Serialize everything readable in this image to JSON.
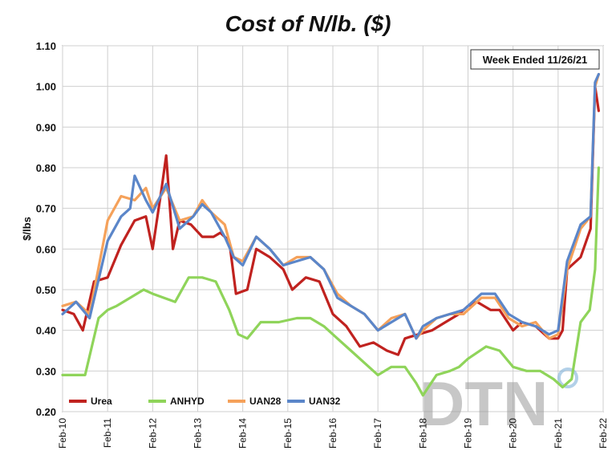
{
  "chart_data": {
    "type": "line",
    "title": "Cost of N/lb. ($)",
    "ylabel": "$/lbs",
    "xlabel": "",
    "ylim": [
      0.2,
      1.1
    ],
    "yticks": [
      "0.20",
      "0.30",
      "0.40",
      "0.50",
      "0.60",
      "0.70",
      "0.80",
      "0.90",
      "1.00",
      "1.10"
    ],
    "xticks": [
      "Feb-10",
      "Feb-11",
      "Feb-12",
      "Feb-13",
      "Feb-14",
      "Feb-15",
      "Feb-16",
      "Feb-17",
      "Feb-18",
      "Feb-19",
      "Feb-20",
      "Feb-21",
      "Feb-22"
    ],
    "xlim": [
      2010,
      2022
    ],
    "annotation": "Week Ended 11/26/21",
    "watermark": "DTN",
    "grid": true,
    "legend_position": "bottom-left",
    "series": [
      {
        "name": "Urea",
        "color": "#c0221f",
        "x": [
          2010.0,
          2010.25,
          2010.45,
          2010.7,
          2011.0,
          2011.3,
          2011.6,
          2011.85,
          2012.0,
          2012.2,
          2012.3,
          2012.45,
          2012.6,
          2012.85,
          2013.1,
          2013.35,
          2013.5,
          2013.7,
          2013.85,
          2014.1,
          2014.3,
          2014.6,
          2014.9,
          2015.1,
          2015.4,
          2015.7,
          2016.0,
          2016.3,
          2016.6,
          2016.9,
          2017.2,
          2017.45,
          2017.6,
          2017.9,
          2018.2,
          2018.5,
          2018.8,
          2019.0,
          2019.2,
          2019.5,
          2019.7,
          2020.0,
          2020.2,
          2020.5,
          2020.8,
          2021.0,
          2021.1,
          2021.2,
          2021.5,
          2021.72,
          2021.82,
          2021.9
        ],
        "y": [
          0.45,
          0.44,
          0.4,
          0.52,
          0.53,
          0.61,
          0.67,
          0.68,
          0.6,
          0.75,
          0.83,
          0.6,
          0.67,
          0.66,
          0.63,
          0.63,
          0.64,
          0.62,
          0.49,
          0.5,
          0.6,
          0.58,
          0.55,
          0.5,
          0.53,
          0.52,
          0.44,
          0.41,
          0.36,
          0.37,
          0.35,
          0.34,
          0.38,
          0.39,
          0.4,
          0.42,
          0.44,
          0.46,
          0.47,
          0.45,
          0.45,
          0.4,
          0.42,
          0.41,
          0.38,
          0.38,
          0.4,
          0.55,
          0.58,
          0.65,
          1.0,
          0.94
        ]
      },
      {
        "name": "ANHYD",
        "color": "#8fd45a",
        "x": [
          2010.0,
          2010.3,
          2010.5,
          2010.8,
          2011.0,
          2011.2,
          2011.5,
          2011.8,
          2012.0,
          2012.5,
          2012.8,
          2013.1,
          2013.4,
          2013.7,
          2013.9,
          2014.1,
          2014.4,
          2014.8,
          2015.2,
          2015.5,
          2015.8,
          2016.1,
          2016.4,
          2016.7,
          2017.0,
          2017.3,
          2017.6,
          2017.85,
          2018.0,
          2018.3,
          2018.6,
          2018.8,
          2019.0,
          2019.4,
          2019.7,
          2020.0,
          2020.3,
          2020.6,
          2020.9,
          2021.1,
          2021.3,
          2021.5,
          2021.7,
          2021.82,
          2021.9
        ],
        "y": [
          0.29,
          0.29,
          0.29,
          0.43,
          0.45,
          0.46,
          0.48,
          0.5,
          0.49,
          0.47,
          0.53,
          0.53,
          0.52,
          0.45,
          0.39,
          0.38,
          0.42,
          0.42,
          0.43,
          0.43,
          0.41,
          0.38,
          0.35,
          0.32,
          0.29,
          0.31,
          0.31,
          0.27,
          0.24,
          0.29,
          0.3,
          0.31,
          0.33,
          0.36,
          0.35,
          0.31,
          0.3,
          0.3,
          0.28,
          0.26,
          0.28,
          0.42,
          0.45,
          0.55,
          0.8
        ]
      },
      {
        "name": "UAN28",
        "color": "#f5a15a",
        "x": [
          2010.0,
          2010.3,
          2010.6,
          2011.0,
          2011.3,
          2011.6,
          2011.85,
          2012.0,
          2012.3,
          2012.6,
          2012.9,
          2013.1,
          2013.3,
          2013.6,
          2013.8,
          2014.0,
          2014.3,
          2014.6,
          2014.9,
          2015.2,
          2015.5,
          2015.8,
          2016.1,
          2016.4,
          2016.7,
          2017.0,
          2017.3,
          2017.6,
          2017.85,
          2018.0,
          2018.3,
          2018.6,
          2018.9,
          2019.0,
          2019.3,
          2019.6,
          2019.9,
          2020.2,
          2020.5,
          2020.8,
          2021.0,
          2021.2,
          2021.5,
          2021.72,
          2021.82,
          2021.9
        ],
        "y": [
          0.46,
          0.47,
          0.44,
          0.67,
          0.73,
          0.72,
          0.75,
          0.7,
          0.75,
          0.67,
          0.68,
          0.72,
          0.69,
          0.66,
          0.58,
          0.57,
          0.63,
          0.6,
          0.56,
          0.58,
          0.58,
          0.55,
          0.49,
          0.46,
          0.44,
          0.4,
          0.43,
          0.44,
          0.38,
          0.4,
          0.43,
          0.44,
          0.44,
          0.45,
          0.48,
          0.48,
          0.43,
          0.41,
          0.42,
          0.38,
          0.39,
          0.55,
          0.65,
          0.68,
          1.0,
          1.03
        ]
      },
      {
        "name": "UAN32",
        "color": "#5b86c9",
        "x": [
          2010.0,
          2010.3,
          2010.6,
          2011.0,
          2011.3,
          2011.5,
          2011.6,
          2011.85,
          2012.0,
          2012.3,
          2012.6,
          2012.9,
          2013.1,
          2013.3,
          2013.6,
          2013.8,
          2014.0,
          2014.3,
          2014.6,
          2014.9,
          2015.2,
          2015.5,
          2015.8,
          2016.1,
          2016.4,
          2016.7,
          2017.0,
          2017.3,
          2017.6,
          2017.85,
          2018.0,
          2018.3,
          2018.6,
          2018.9,
          2019.0,
          2019.3,
          2019.6,
          2019.9,
          2020.2,
          2020.5,
          2020.8,
          2021.0,
          2021.2,
          2021.5,
          2021.72,
          2021.82,
          2021.9
        ],
        "y": [
          0.44,
          0.47,
          0.43,
          0.62,
          0.68,
          0.7,
          0.78,
          0.72,
          0.69,
          0.76,
          0.65,
          0.68,
          0.71,
          0.69,
          0.63,
          0.58,
          0.56,
          0.63,
          0.6,
          0.56,
          0.57,
          0.58,
          0.55,
          0.48,
          0.46,
          0.44,
          0.4,
          0.42,
          0.44,
          0.38,
          0.41,
          0.43,
          0.44,
          0.45,
          0.46,
          0.49,
          0.49,
          0.44,
          0.42,
          0.41,
          0.39,
          0.4,
          0.57,
          0.66,
          0.68,
          1.01,
          1.03
        ]
      }
    ]
  }
}
